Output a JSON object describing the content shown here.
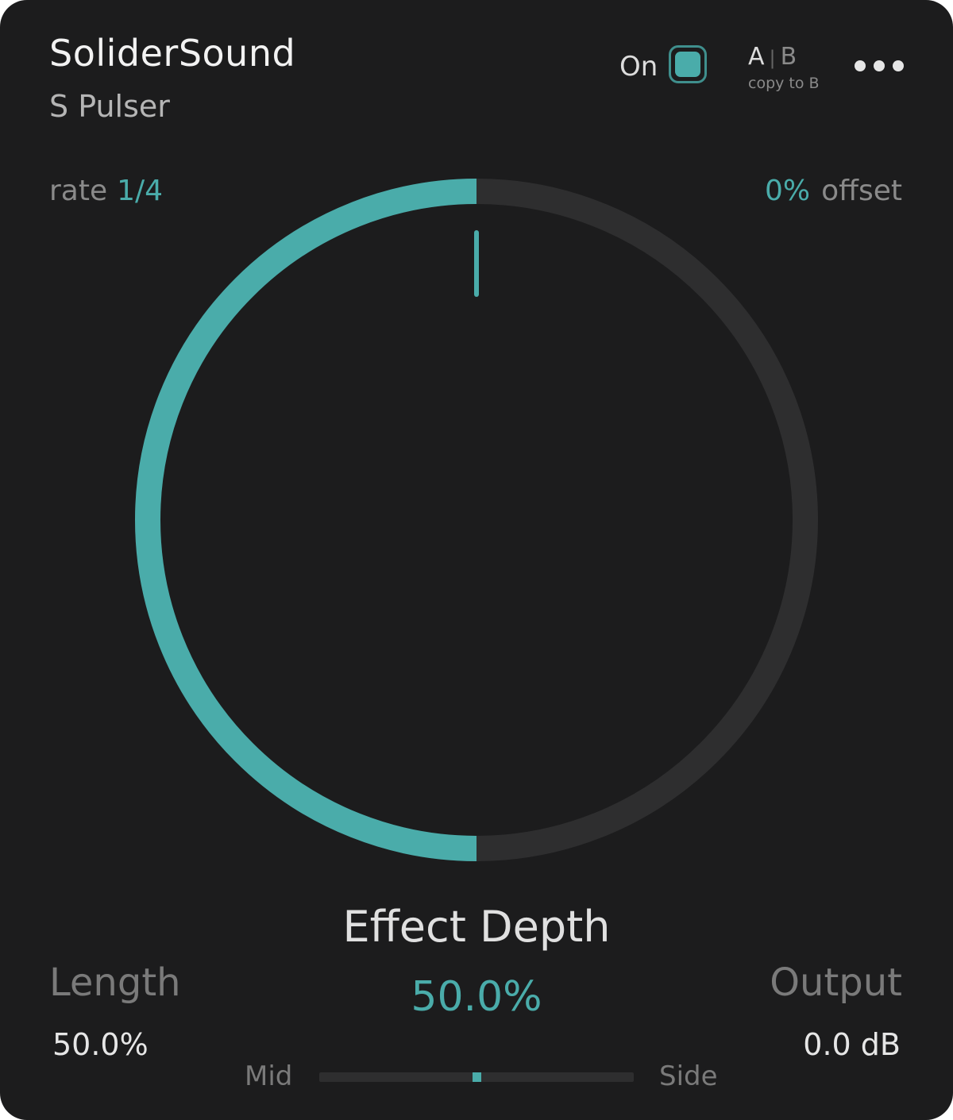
{
  "header": {
    "brand": "SoliderSound",
    "product": "S Pulser",
    "on_label": "On",
    "on_state": true,
    "ab_a": "A",
    "ab_sep": "|",
    "ab_b": "B",
    "copy_label": "copy to B"
  },
  "rate": {
    "label": "rate",
    "value": "1/4"
  },
  "offset": {
    "label": "offset",
    "value": "0%"
  },
  "effect_depth": {
    "label": "Effect Depth",
    "value": "50.0%",
    "fraction": 0.5
  },
  "length": {
    "label": "Length",
    "value": "50.0%"
  },
  "output": {
    "label": "Output",
    "value": "0.0 dB"
  },
  "mid_side": {
    "mid_label": "Mid",
    "side_label": "Side",
    "position": 0.5
  },
  "colors": {
    "accent": "#4aacaa",
    "background": "#1c1c1d",
    "track": "#2e2e2f"
  }
}
